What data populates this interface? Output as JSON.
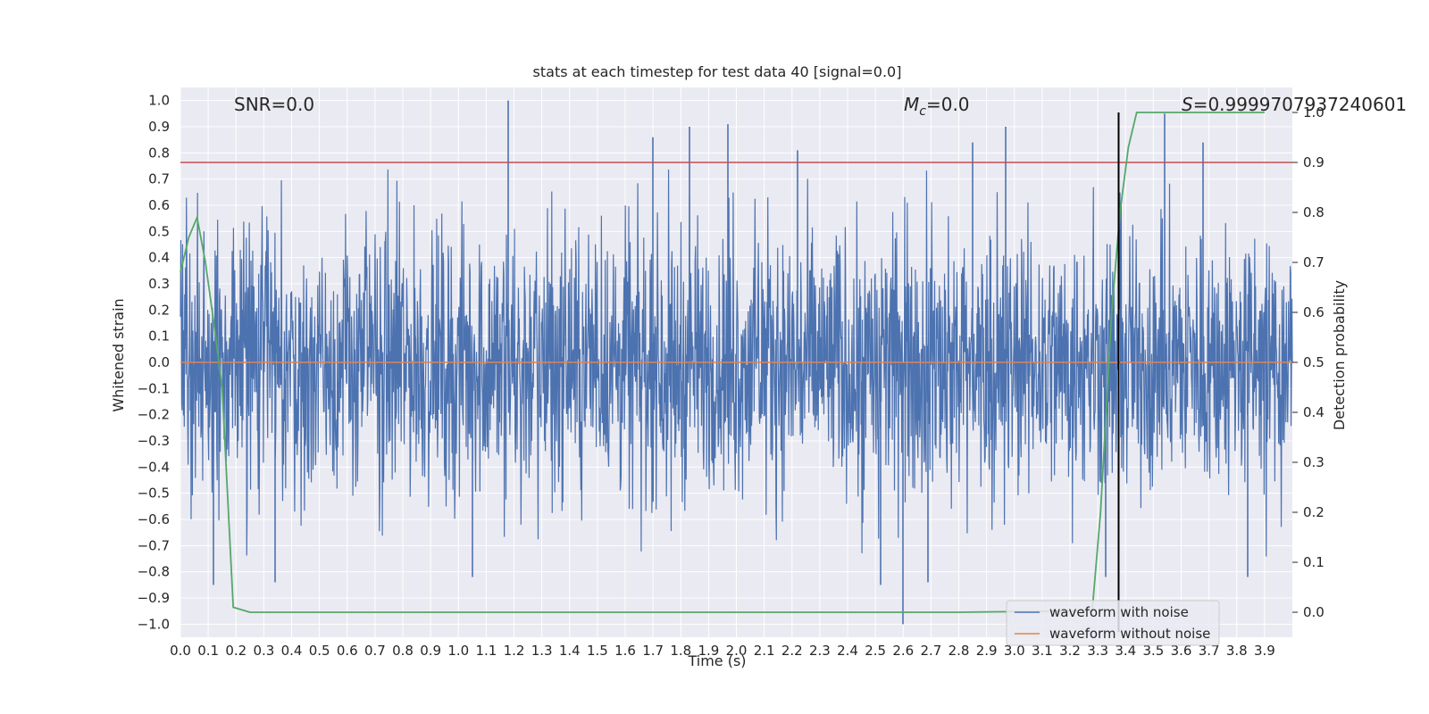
{
  "chart_data": {
    "type": "line",
    "title": "stats at each timestep for test data 40 [signal=0.0]",
    "xlabel": "Time (s)",
    "ylabel": "Whitened strain",
    "y2label": "Detection probability",
    "xlim": [
      0.0,
      4.0
    ],
    "ylim": [
      -1.05,
      1.05
    ],
    "y2lim": [
      -0.05,
      1.05
    ],
    "x_ticks": [
      "0.0",
      "0.1",
      "0.2",
      "0.3",
      "0.4",
      "0.5",
      "0.6",
      "0.7",
      "0.8",
      "0.9",
      "1.0",
      "1.1",
      "1.2",
      "1.3",
      "1.4",
      "1.5",
      "1.6",
      "1.7",
      "1.8",
      "1.9",
      "2.0",
      "2.1",
      "2.2",
      "2.3",
      "2.4",
      "2.5",
      "2.6",
      "2.7",
      "2.8",
      "2.9",
      "3.0",
      "3.1",
      "3.2",
      "3.3",
      "3.4",
      "3.5",
      "3.6",
      "3.7",
      "3.8",
      "3.9"
    ],
    "y_ticks": [
      "1.0",
      "0.9",
      "0.8",
      "0.7",
      "0.6",
      "0.5",
      "0.4",
      "0.3",
      "0.2",
      "0.1",
      "0.0",
      "−0.1",
      "−0.2",
      "−0.3",
      "−0.4",
      "−0.5",
      "−0.6",
      "−0.7",
      "−0.8",
      "−0.9",
      "−1.0"
    ],
    "y2_ticks": [
      "1.0",
      "0.9",
      "0.8",
      "0.7",
      "0.6",
      "0.5",
      "0.4",
      "0.3",
      "0.2",
      "0.1",
      "0.0"
    ],
    "annotations": {
      "snr": "SNR=0.0",
      "mc_symbol": "M",
      "mc_sub": "c",
      "mc_value": "=0.0",
      "s_symbol": "S",
      "s_value": "=0.9999707937240601"
    },
    "threshold_line_y2": 0.9,
    "detection_time_x": 3.375,
    "grid": true,
    "legend_placement": "lower-right",
    "series": [
      {
        "name": "waveform with noise",
        "axis": "left",
        "color": "#4c72b0",
        "noise_envelope": 0.55,
        "peaks": [
          {
            "x": 1.18,
            "y": 1.0
          },
          {
            "x": 1.7,
            "y": 0.86
          },
          {
            "x": 1.83,
            "y": 0.9
          },
          {
            "x": 1.97,
            "y": 0.91
          },
          {
            "x": 2.22,
            "y": 0.81
          },
          {
            "x": 2.85,
            "y": 0.84
          },
          {
            "x": 2.97,
            "y": 0.9
          },
          {
            "x": 3.54,
            "y": 0.95
          },
          {
            "x": 3.68,
            "y": 0.84
          },
          {
            "x": 0.34,
            "y": -0.84
          },
          {
            "x": 0.12,
            "y": -0.85
          },
          {
            "x": 1.05,
            "y": -0.82
          },
          {
            "x": 2.6,
            "y": -1.0
          },
          {
            "x": 2.69,
            "y": -0.84
          },
          {
            "x": 2.52,
            "y": -0.85
          },
          {
            "x": 3.84,
            "y": -0.82
          },
          {
            "x": 3.33,
            "y": -0.82
          }
        ]
      },
      {
        "name": "waveform without noise",
        "axis": "left",
        "color": "#dd8452",
        "x": [
          0.0,
          4.0
        ],
        "y": [
          0.0,
          0.0
        ]
      },
      {
        "name": "",
        "axis": "right",
        "color": "#55a868",
        "x": [
          0.0,
          0.03,
          0.06,
          0.09,
          0.12,
          0.15,
          0.19,
          0.25,
          1.0,
          1.1,
          2.8,
          3.28,
          3.31,
          3.35,
          3.38,
          3.41,
          3.44,
          3.9
        ],
        "y": [
          0.68,
          0.75,
          0.79,
          0.7,
          0.58,
          0.45,
          0.01,
          0.0,
          0.0,
          0.0,
          0.0,
          0.003,
          0.2,
          0.6,
          0.8,
          0.93,
          1.0,
          1.0
        ]
      }
    ],
    "legend": [
      "waveform with noise",
      "waveform without noise"
    ],
    "colors": {
      "threshold": "#c44e52",
      "detection_line": "#000000",
      "plot_bg": "#eaeaf2",
      "grid": "#ffffff"
    }
  }
}
